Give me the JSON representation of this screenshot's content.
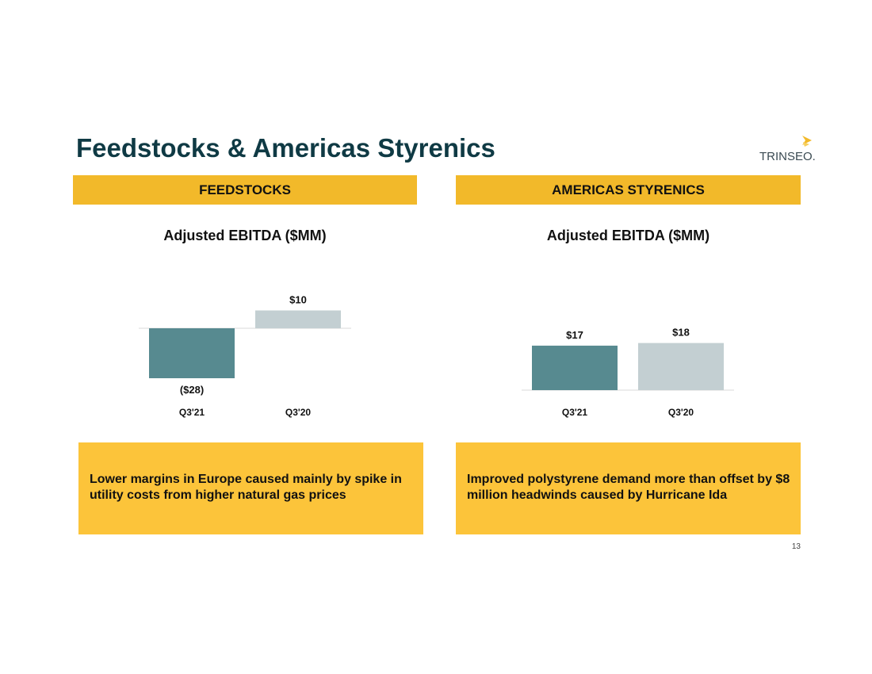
{
  "slide": {
    "title": "Feedstocks & Americas Styrenics",
    "page_number": "13"
  },
  "logo": {
    "text": "TRINSEO.",
    "mark": "chevron-mark-icon",
    "color": "#f2b92a"
  },
  "colors": {
    "header_fill": "#f2b92a",
    "note_fill": "#fcc43a",
    "title_color": "#0f3a44",
    "bar_current": "#578a90",
    "bar_prior": "#c3cfd2"
  },
  "sections": [
    {
      "header": "FEEDSTOCKS",
      "note": "Lower margins in Europe caused mainly by spike in utility costs from higher natural gas prices"
    },
    {
      "header": "AMERICAS STYRENICS",
      "note": "Improved polystyrene demand more than offset by $8 million headwinds caused by Hurricane Ida"
    }
  ],
  "chart_data": [
    {
      "type": "bar",
      "title": "Adjusted EBITDA ($MM)",
      "categories": [
        "Q3'21",
        "Q3'20"
      ],
      "values": [
        -28,
        10
      ],
      "data_labels": [
        "($28)",
        "$10"
      ],
      "xlabel": "",
      "ylabel": "",
      "grid": false
    },
    {
      "type": "bar",
      "title": "Adjusted EBITDA ($MM)",
      "categories": [
        "Q3'21",
        "Q3'20"
      ],
      "values": [
        17,
        18
      ],
      "data_labels": [
        "$17",
        "$18"
      ],
      "xlabel": "",
      "ylabel": "",
      "grid": false
    }
  ]
}
